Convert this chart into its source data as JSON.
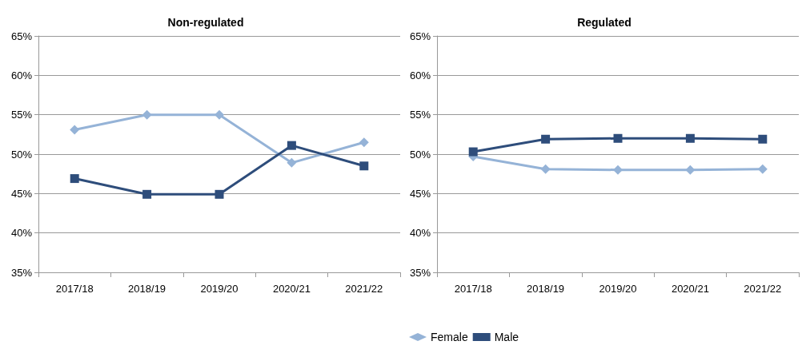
{
  "chart_data": [
    {
      "type": "line",
      "title": "Non-regulated",
      "categories": [
        "2017/18",
        "2018/19",
        "2019/20",
        "2020/21",
        "2021/22"
      ],
      "series": [
        {
          "color": "#95b3d7",
          "marker": "diamond",
          "values": [
            53.1,
            55,
            55,
            48.9,
            51.5
          ]
        },
        {
          "color": "#2e4d7b",
          "marker": "square",
          "values": [
            46.9,
            44.9,
            44.9,
            51.1,
            48.5
          ]
        }
      ],
      "ylim": [
        35,
        65
      ],
      "yticks": [
        {
          "value": 35,
          "label": "35%"
        },
        {
          "value": 40,
          "label": "40%"
        },
        {
          "value": 45,
          "label": "45%"
        },
        {
          "value": 50,
          "label": "50%"
        },
        {
          "value": 55,
          "label": "55%"
        },
        {
          "value": 60,
          "label": "60%"
        },
        {
          "value": 65,
          "label": "65%"
        }
      ],
      "grid": "y"
    },
    {
      "type": "line",
      "title": "Regulated",
      "categories": [
        "2017/18",
        "2018/19",
        "2019/20",
        "2020/21",
        "2021/22"
      ],
      "series": [
        {
          "name": "Female",
          "color": "#95b3d7",
          "marker": "diamond",
          "values": [
            49.7,
            48.1,
            48,
            48,
            48.1
          ]
        },
        {
          "name": "Male",
          "color": "#2e4d7b",
          "marker": "square",
          "values": [
            50.3,
            51.9,
            52,
            52,
            51.9
          ]
        }
      ],
      "ylim": [
        35,
        65
      ],
      "yticks": [
        {
          "value": 35,
          "label": "35%"
        },
        {
          "value": 40,
          "label": "40%"
        },
        {
          "value": 45,
          "label": "45%"
        },
        {
          "value": 50,
          "label": "50%"
        },
        {
          "value": 55,
          "label": "55%"
        },
        {
          "value": 60,
          "label": "60%"
        },
        {
          "value": 65,
          "label": "65%"
        }
      ],
      "grid": "y",
      "legend": "bottom"
    }
  ]
}
